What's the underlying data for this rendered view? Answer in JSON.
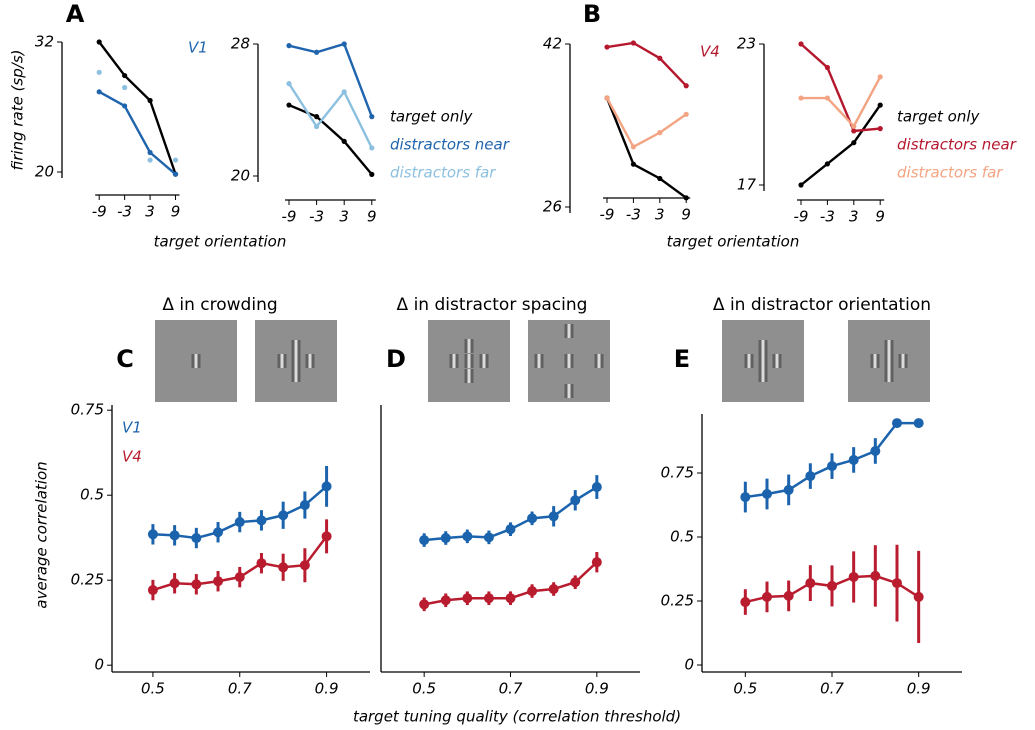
{
  "chart_data": [
    {
      "type": "line",
      "panel": "A",
      "annotation": "V1",
      "ylabel": "firing rate (sp/s)",
      "xlabel": "target orientation",
      "x": [
        -9,
        -3,
        3,
        9
      ],
      "xlim": [
        -14,
        11
      ],
      "xticks": [
        -9,
        -3,
        3,
        9
      ],
      "ylim": [
        20,
        32
      ],
      "yticks": [
        20,
        32
      ],
      "series": [
        {
          "color": "#000000",
          "values": [
            32,
            28.9,
            26.6,
            19.8
          ]
        },
        {
          "color": "#1f64ad",
          "values": [
            27.4,
            26.1,
            21.8,
            19.8
          ]
        },
        {
          "color": "#8cc0e0",
          "style": "points",
          "values": [
            29.2,
            27.8,
            21.1,
            21.1
          ]
        }
      ]
    },
    {
      "type": "line",
      "legend": true,
      "x": [
        -9,
        -3,
        3,
        9
      ],
      "xlim": [
        -14,
        11
      ],
      "xticks": [
        -9,
        -3,
        3,
        9
      ],
      "ylim": [
        20,
        28
      ],
      "yticks": [
        20,
        28
      ],
      "series": [
        {
          "name": "target only",
          "color": "#000000",
          "values": [
            24.3,
            23.6,
            22.1,
            20.1
          ]
        },
        {
          "name": "distractors near",
          "color": "#1f64ad",
          "values": [
            27.9,
            27.5,
            28,
            23.6
          ]
        },
        {
          "name": "distractors far",
          "color": "#8cc0e0",
          "values": [
            25.6,
            23,
            25.1,
            21.7
          ]
        }
      ]
    },
    {
      "type": "line",
      "panel": "B",
      "annotation": "V4",
      "xlabel": "target orientation",
      "x": [
        -9,
        -3,
        3,
        9
      ],
      "xlim": [
        -14,
        11
      ],
      "xticks": [
        -9,
        -3,
        3,
        9
      ],
      "ylim": [
        26,
        42
      ],
      "yticks": [
        26,
        42
      ],
      "series": [
        {
          "color": "#000000",
          "values": [
            36.7,
            30.2,
            28.8,
            26.9
          ]
        },
        {
          "color": "#b5172d",
          "values": [
            41.7,
            42.1,
            40.6,
            37.9
          ]
        },
        {
          "color": "#f3a483",
          "values": [
            36.7,
            31.9,
            33.3,
            35.1
          ]
        }
      ]
    },
    {
      "type": "line",
      "legend": true,
      "x": [
        -9,
        -3,
        3,
        9
      ],
      "xlim": [
        -14,
        11
      ],
      "xticks": [
        -9,
        -3,
        3,
        9
      ],
      "ylim": [
        17,
        23
      ],
      "yticks": [
        17,
        23
      ],
      "series": [
        {
          "name": "target only",
          "color": "#000000",
          "values": [
            17,
            17.9,
            18.8,
            20.4
          ]
        },
        {
          "name": "distractors near",
          "color": "#b5172d",
          "values": [
            23,
            22,
            19.3,
            19.4
          ]
        },
        {
          "name": "distractors far",
          "color": "#f3a483",
          "values": [
            20.7,
            20.7,
            19.5,
            21.6
          ]
        }
      ]
    },
    {
      "type": "errorline",
      "panel": "C",
      "title": "Δ in crowding",
      "legend": true,
      "ylabel": "average correlation",
      "x": [
        0.5,
        0.55,
        0.6,
        0.65,
        0.7,
        0.75,
        0.8,
        0.85,
        0.9
      ],
      "xlim": [
        0.4,
        1.0
      ],
      "xticks": [
        0.5,
        0.7,
        0.9
      ],
      "ylim": [
        -0.02,
        0.78
      ],
      "yticks": [
        0,
        0.25,
        0.5,
        0.75
      ],
      "series": [
        {
          "name": "V1",
          "color": "#1b63ad",
          "values": [
            0.385,
            0.382,
            0.374,
            0.391,
            0.421,
            0.426,
            0.441,
            0.471,
            0.526
          ],
          "errors": [
            0.03,
            0.03,
            0.03,
            0.03,
            0.03,
            0.03,
            0.04,
            0.04,
            0.06
          ]
        },
        {
          "name": "V4",
          "color": "#b81c2e",
          "values": [
            0.221,
            0.241,
            0.238,
            0.247,
            0.259,
            0.3,
            0.288,
            0.294,
            0.379
          ],
          "errors": [
            0.03,
            0.03,
            0.03,
            0.03,
            0.03,
            0.03,
            0.04,
            0.05,
            0.05
          ]
        }
      ]
    },
    {
      "type": "errorline",
      "panel": "D",
      "title": "Δ in distractor spacing",
      "xlabel": "target tuning quality (correlation threshold)",
      "x": [
        0.5,
        0.55,
        0.6,
        0.65,
        0.7,
        0.75,
        0.8,
        0.85,
        0.9
      ],
      "xlim": [
        0.4,
        1.0
      ],
      "xticks": [
        0.5,
        0.7,
        0.9
      ],
      "ylim": [
        -0.02,
        0.78
      ],
      "series": [
        {
          "color": "#1b63ad",
          "values": [
            0.368,
            0.374,
            0.379,
            0.376,
            0.4,
            0.432,
            0.438,
            0.485,
            0.524
          ],
          "errors": [
            0.02,
            0.02,
            0.02,
            0.02,
            0.02,
            0.02,
            0.03,
            0.03,
            0.035
          ]
        },
        {
          "color": "#b81c2e",
          "values": [
            0.179,
            0.191,
            0.197,
            0.197,
            0.197,
            0.218,
            0.224,
            0.244,
            0.303
          ],
          "errors": [
            0.02,
            0.02,
            0.02,
            0.02,
            0.02,
            0.02,
            0.02,
            0.02,
            0.03
          ]
        }
      ]
    },
    {
      "type": "errorline",
      "panel": "E",
      "title": "Δ in distractor orientation",
      "x": [
        0.5,
        0.55,
        0.6,
        0.65,
        0.7,
        0.75,
        0.8,
        0.85,
        0.9
      ],
      "xlim": [
        0.4,
        1.0
      ],
      "xticks": [
        0.5,
        0.7,
        0.9
      ],
      "ylim": [
        -0.03,
        1.0
      ],
      "yticks": [
        0,
        0.25,
        0.5,
        0.75
      ],
      "series": [
        {
          "color": "#1b63ad",
          "values": [
            0.656,
            0.668,
            0.684,
            0.738,
            0.777,
            0.801,
            0.836,
            0.945,
            0.945
          ],
          "errors": [
            0.06,
            0.06,
            0.06,
            0.05,
            0.05,
            0.05,
            0.05,
            0,
            0
          ]
        },
        {
          "color": "#b81c2e",
          "values": [
            0.246,
            0.266,
            0.27,
            0.32,
            0.309,
            0.344,
            0.348,
            0.32,
            0.266
          ],
          "errors": [
            0.05,
            0.06,
            0.06,
            0.07,
            0.08,
            0.1,
            0.12,
            0.15,
            0.18
          ]
        }
      ]
    }
  ]
}
